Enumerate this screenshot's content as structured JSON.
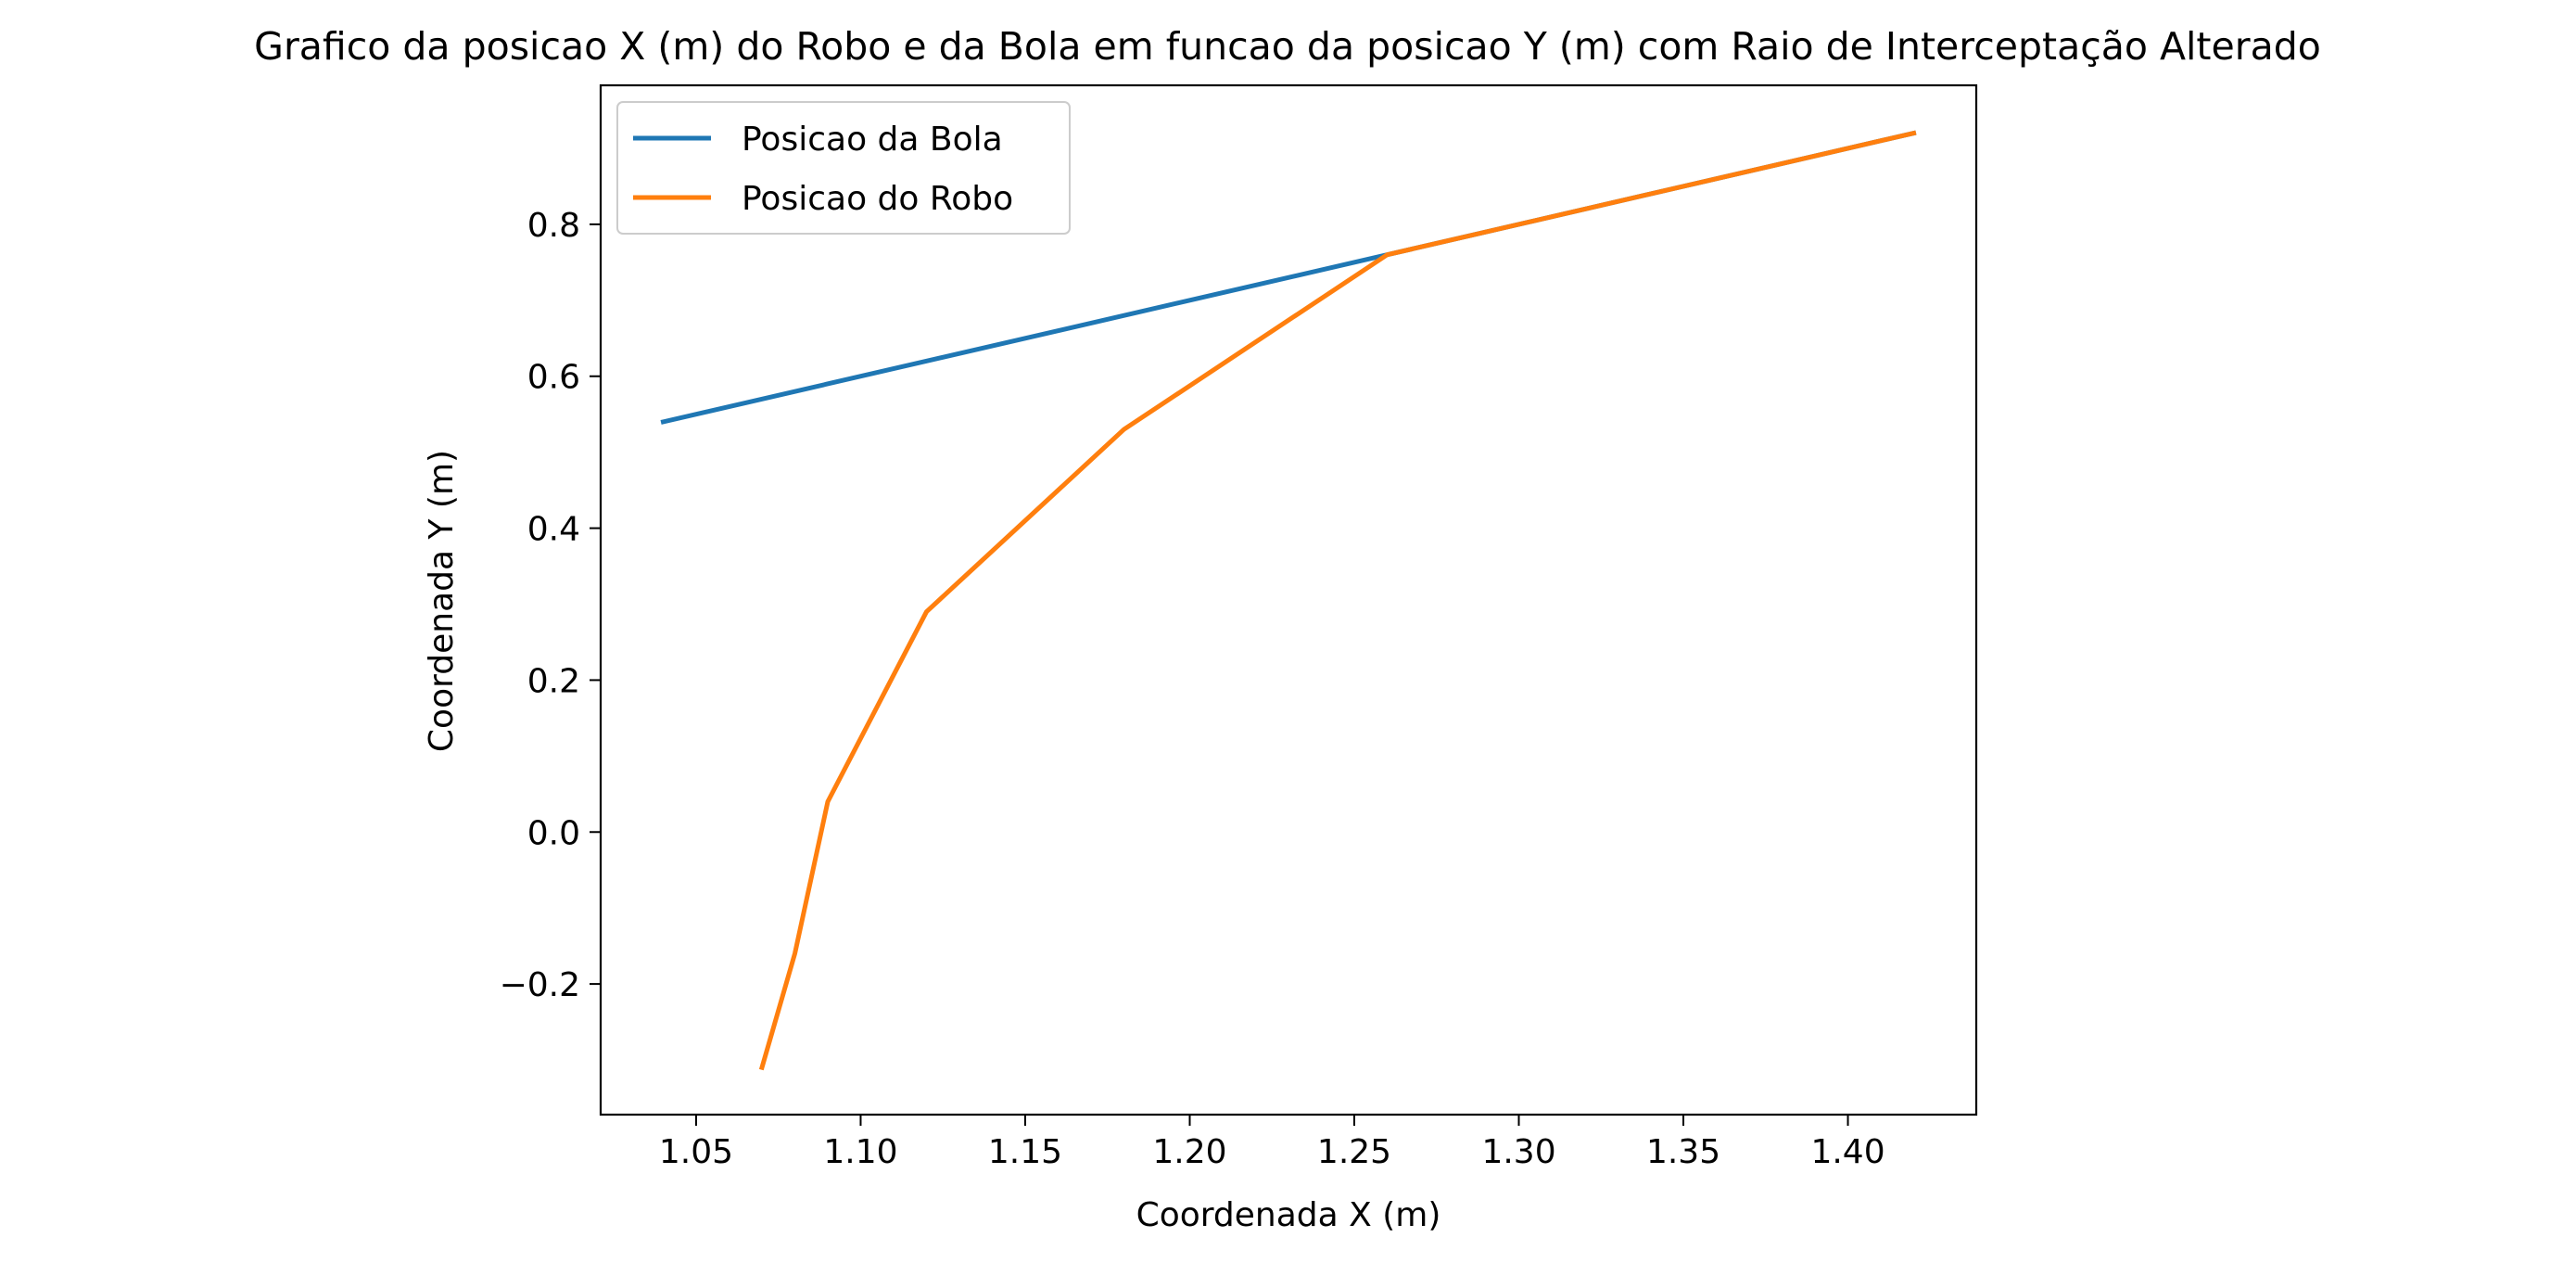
{
  "chart_data": {
    "type": "line",
    "title": "Grafico da posicao X (m) do Robo e da Bola em funcao da posicao Y (m) com Raio de Interceptação Alterado",
    "xlabel": "Coordenada X (m)",
    "ylabel": "Coordenada Y (m)",
    "xlim": [
      1.021,
      1.439
    ],
    "ylim": [
      -0.372,
      0.983
    ],
    "xticks": [
      1.05,
      1.1,
      1.15,
      1.2,
      1.25,
      1.3,
      1.35,
      1.4
    ],
    "xtick_labels": [
      "1.05",
      "1.10",
      "1.15",
      "1.20",
      "1.25",
      "1.30",
      "1.35",
      "1.40"
    ],
    "yticks": [
      -0.2,
      0.0,
      0.2,
      0.4,
      0.6,
      0.8
    ],
    "ytick_labels": [
      "−0.2",
      "0.0",
      "0.2",
      "0.4",
      "0.6",
      "0.8"
    ],
    "grid": false,
    "legend_position": "upper-left",
    "series": [
      {
        "name": "Posicao da Bola",
        "color": "#1f77b4",
        "x": [
          1.04,
          1.26,
          1.42
        ],
        "y": [
          0.54,
          0.76,
          0.92
        ]
      },
      {
        "name": "Posicao do Robo",
        "color": "#ff7f0e",
        "x": [
          1.07,
          1.08,
          1.09,
          1.12,
          1.18,
          1.26,
          1.42
        ],
        "y": [
          -0.31,
          -0.16,
          0.04,
          0.29,
          0.53,
          0.76,
          0.92
        ]
      }
    ]
  }
}
